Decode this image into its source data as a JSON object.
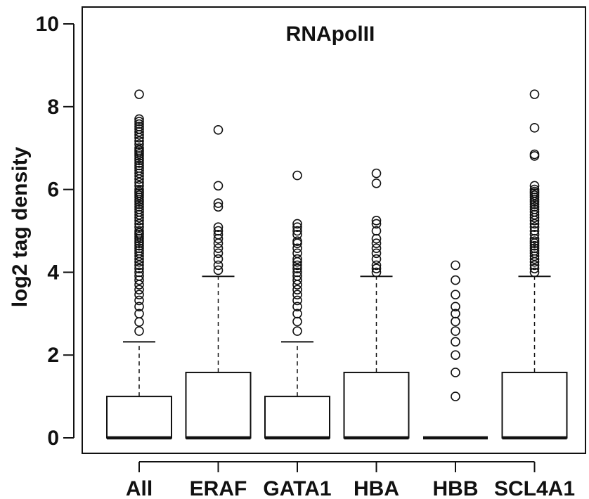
{
  "chart_data": {
    "type": "box",
    "title": "RNApolII",
    "xlabel": "",
    "ylabel": "log2 tag density",
    "ylim": [
      0,
      10
    ],
    "yticks": [
      0,
      2,
      4,
      6,
      8,
      10
    ],
    "categories": [
      "All",
      "ERAF",
      "GATA1",
      "HBA",
      "HBB",
      "SCL4A1"
    ],
    "grid": false,
    "boxes": [
      {
        "category": "All",
        "min": 0,
        "q1": 0,
        "median": 0,
        "q3": 1.0,
        "whisker_high": 2.32,
        "outliers": [
          2.58,
          2.8,
          3.0,
          3.17,
          3.32,
          3.46,
          3.58,
          3.7,
          3.81,
          3.91,
          4.0,
          4.09,
          4.17,
          4.25,
          4.32,
          4.39,
          4.46,
          4.52,
          4.58,
          4.64,
          4.7,
          4.75,
          4.81,
          4.86,
          4.91,
          4.95,
          5.0,
          5.09,
          5.17,
          5.25,
          5.32,
          5.39,
          5.46,
          5.52,
          5.58,
          5.64,
          5.7,
          5.75,
          5.81,
          5.86,
          5.91,
          5.95,
          6.0,
          6.09,
          6.17,
          6.25,
          6.32,
          6.39,
          6.46,
          6.52,
          6.58,
          6.64,
          6.7,
          6.75,
          6.81,
          6.86,
          6.91,
          6.95,
          7.0,
          7.09,
          7.17,
          7.25,
          7.32,
          7.39,
          7.46,
          7.52,
          7.58,
          7.64,
          7.7,
          8.3
        ]
      },
      {
        "category": "ERAF",
        "min": 0,
        "q1": 0,
        "median": 0,
        "q3": 1.58,
        "whisker_high": 3.9,
        "outliers": [
          4.05,
          4.17,
          4.32,
          4.46,
          4.58,
          4.7,
          4.81,
          4.91,
          5.0,
          5.09,
          5.58,
          5.67,
          6.09,
          7.44
        ]
      },
      {
        "category": "GATA1",
        "min": 0,
        "q1": 0,
        "median": 0,
        "q3": 1.0,
        "whisker_high": 2.32,
        "outliers": [
          2.58,
          2.81,
          3.0,
          3.17,
          3.32,
          3.46,
          3.58,
          3.7,
          3.81,
          3.91,
          4.0,
          4.09,
          4.17,
          4.25,
          4.32,
          4.46,
          4.58,
          4.7,
          4.75,
          4.91,
          5.0,
          5.09,
          5.17,
          6.34
        ]
      },
      {
        "category": "HBA",
        "min": 0,
        "q1": 0,
        "median": 0,
        "q3": 1.58,
        "whisker_high": 3.9,
        "outliers": [
          4.0,
          4.09,
          4.17,
          4.32,
          4.46,
          4.58,
          4.7,
          4.81,
          5.0,
          5.17,
          5.25,
          6.15,
          6.39
        ]
      },
      {
        "category": "HBB",
        "min": 0,
        "q1": 0,
        "median": 0,
        "q3": 0,
        "whisker_high": 0,
        "outliers": [
          1.0,
          1.58,
          2.0,
          2.32,
          2.58,
          2.81,
          3.0,
          3.17,
          3.46,
          3.81,
          4.17
        ]
      },
      {
        "category": "SCL4A1",
        "min": 0,
        "q1": 0,
        "median": 0,
        "q3": 1.58,
        "whisker_high": 3.9,
        "outliers": [
          4.0,
          4.09,
          4.17,
          4.25,
          4.32,
          4.39,
          4.46,
          4.52,
          4.58,
          4.64,
          4.7,
          4.75,
          4.81,
          4.91,
          5.0,
          5.09,
          5.17,
          5.25,
          5.32,
          5.39,
          5.46,
          5.52,
          5.58,
          5.64,
          5.7,
          5.75,
          5.81,
          5.86,
          5.91,
          5.95,
          6.0,
          6.09,
          6.81,
          6.85,
          7.49,
          8.3
        ]
      }
    ]
  }
}
